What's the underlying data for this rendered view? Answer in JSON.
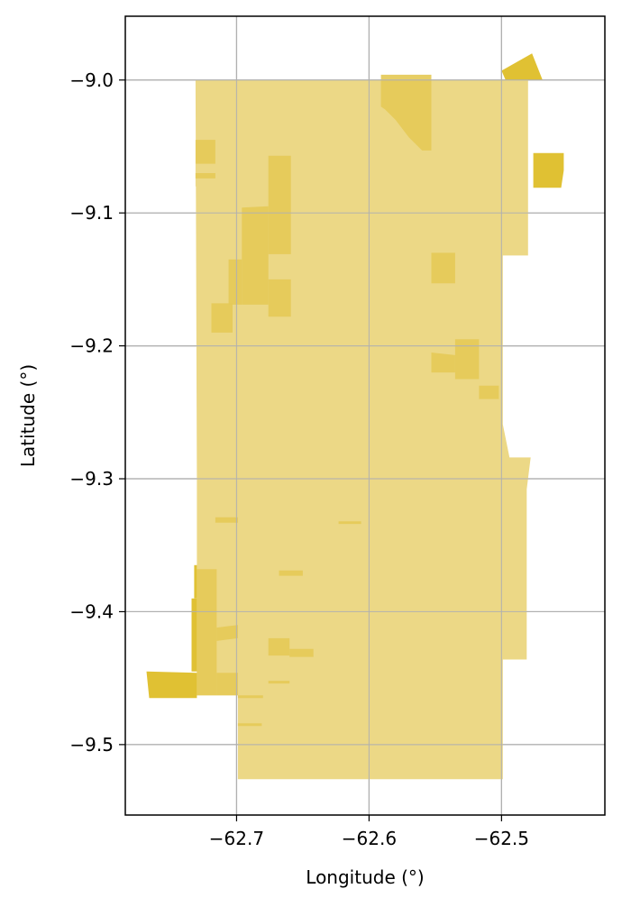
{
  "chart_data": {
    "type": "map",
    "xlabel": "Longitude (°)",
    "ylabel": "Latitude (°)",
    "xlim": [
      -62.784,
      -62.422
    ],
    "ylim": [
      -9.553,
      -8.952
    ],
    "xticks": [
      -62.7,
      -62.6,
      -62.5
    ],
    "yticks": [
      -9.0,
      -9.1,
      -9.2,
      -9.3,
      -9.4,
      -9.5
    ],
    "xtick_labels": [
      "−62.7",
      "−62.6",
      "−62.5"
    ],
    "ytick_labels": [
      "−9.0",
      "−9.1",
      "−9.2",
      "−9.3",
      "−9.4",
      "−9.5"
    ],
    "grid": true,
    "colors": {
      "light": "#ecd886",
      "medium": "#e5ca58",
      "dark": "#ddbc22",
      "grid": "#b0b0b0"
    },
    "polygons": [
      {
        "tone": "light",
        "coords": [
          [
            -62.731,
            -9.0
          ],
          [
            -62.48,
            -9.0
          ],
          [
            -62.48,
            -9.132
          ],
          [
            -62.499,
            -9.132
          ],
          [
            -62.499,
            -9.259
          ],
          [
            -62.494,
            -9.284
          ],
          [
            -62.478,
            -9.284
          ],
          [
            -62.481,
            -9.308
          ],
          [
            -62.481,
            -9.436
          ],
          [
            -62.499,
            -9.436
          ],
          [
            -62.499,
            -9.526
          ],
          [
            -62.699,
            -9.526
          ],
          [
            -62.699,
            -9.463
          ],
          [
            -62.73,
            -9.463
          ],
          [
            -62.73,
            -9.3
          ],
          [
            -62.731,
            -9.0
          ]
        ]
      },
      {
        "tone": "light",
        "coords": [
          [
            -62.731,
            -9.063
          ],
          [
            -62.716,
            -9.063
          ],
          [
            -62.716,
            -9.08
          ],
          [
            -62.731,
            -9.08
          ]
        ]
      },
      {
        "tone": "medium",
        "coords": [
          [
            -62.731,
            -9.045
          ],
          [
            -62.716,
            -9.045
          ],
          [
            -62.716,
            -9.063
          ],
          [
            -62.731,
            -9.063
          ]
        ]
      },
      {
        "tone": "medium",
        "coords": [
          [
            -62.731,
            -9.07
          ],
          [
            -62.716,
            -9.07
          ],
          [
            -62.716,
            -9.074
          ],
          [
            -62.731,
            -9.074
          ]
        ]
      },
      {
        "tone": "medium",
        "coords": [
          [
            -62.676,
            -9.057
          ],
          [
            -62.659,
            -9.057
          ],
          [
            -62.659,
            -9.131
          ],
          [
            -62.676,
            -9.131
          ]
        ]
      },
      {
        "tone": "medium",
        "coords": [
          [
            -62.696,
            -9.096
          ],
          [
            -62.676,
            -9.095
          ],
          [
            -62.676,
            -9.169
          ],
          [
            -62.696,
            -9.169
          ]
        ]
      },
      {
        "tone": "medium",
        "coords": [
          [
            -62.706,
            -9.135
          ],
          [
            -62.696,
            -9.135
          ],
          [
            -62.696,
            -9.169
          ],
          [
            -62.706,
            -9.169
          ]
        ]
      },
      {
        "tone": "medium",
        "coords": [
          [
            -62.676,
            -9.15
          ],
          [
            -62.659,
            -9.15
          ],
          [
            -62.659,
            -9.178
          ],
          [
            -62.676,
            -9.178
          ]
        ]
      },
      {
        "tone": "medium",
        "coords": [
          [
            -62.719,
            -9.168
          ],
          [
            -62.703,
            -9.168
          ],
          [
            -62.703,
            -9.19
          ],
          [
            -62.719,
            -9.19
          ]
        ]
      },
      {
        "tone": "medium",
        "coords": [
          [
            -62.591,
            -8.996
          ],
          [
            -62.553,
            -8.996
          ],
          [
            -62.553,
            -9.053
          ],
          [
            -62.56,
            -9.053
          ],
          [
            -62.57,
            -9.043
          ],
          [
            -62.58,
            -9.03
          ],
          [
            -62.588,
            -9.022
          ],
          [
            -62.591,
            -9.02
          ]
        ]
      },
      {
        "tone": "medium",
        "coords": [
          [
            -62.553,
            -9.13
          ],
          [
            -62.535,
            -9.13
          ],
          [
            -62.535,
            -9.153
          ],
          [
            -62.553,
            -9.153
          ]
        ]
      },
      {
        "tone": "medium",
        "coords": [
          [
            -62.553,
            -9.205
          ],
          [
            -62.535,
            -9.207
          ],
          [
            -62.535,
            -9.22
          ],
          [
            -62.553,
            -9.22
          ]
        ]
      },
      {
        "tone": "medium",
        "coords": [
          [
            -62.535,
            -9.195
          ],
          [
            -62.517,
            -9.195
          ],
          [
            -62.517,
            -9.225
          ],
          [
            -62.535,
            -9.225
          ]
        ]
      },
      {
        "tone": "medium",
        "coords": [
          [
            -62.517,
            -9.23
          ],
          [
            -62.502,
            -9.23
          ],
          [
            -62.502,
            -9.24
          ],
          [
            -62.517,
            -9.24
          ]
        ]
      },
      {
        "tone": "medium",
        "coords": [
          [
            -62.73,
            -9.368
          ],
          [
            -62.715,
            -9.368
          ],
          [
            -62.715,
            -9.463
          ],
          [
            -62.73,
            -9.463
          ]
        ]
      },
      {
        "tone": "medium",
        "coords": [
          [
            -62.715,
            -9.412
          ],
          [
            -62.699,
            -9.41
          ],
          [
            -62.699,
            -9.42
          ],
          [
            -62.715,
            -9.422
          ]
        ]
      },
      {
        "tone": "medium",
        "coords": [
          [
            -62.715,
            -9.446
          ],
          [
            -62.699,
            -9.446
          ],
          [
            -62.699,
            -9.463
          ],
          [
            -62.715,
            -9.463
          ]
        ]
      },
      {
        "tone": "medium",
        "coords": [
          [
            -62.676,
            -9.42
          ],
          [
            -62.66,
            -9.42
          ],
          [
            -62.66,
            -9.433
          ],
          [
            -62.676,
            -9.433
          ]
        ]
      },
      {
        "tone": "medium",
        "coords": [
          [
            -62.66,
            -9.428
          ],
          [
            -62.642,
            -9.428
          ],
          [
            -62.642,
            -9.434
          ],
          [
            -62.66,
            -9.434
          ]
        ]
      },
      {
        "tone": "medium",
        "coords": [
          [
            -62.668,
            -9.369
          ],
          [
            -62.65,
            -9.369
          ],
          [
            -62.65,
            -9.373
          ],
          [
            -62.668,
            -9.373
          ]
        ]
      },
      {
        "tone": "medium",
        "coords": [
          [
            -62.716,
            -9.329
          ],
          [
            -62.699,
            -9.329
          ],
          [
            -62.699,
            -9.333
          ],
          [
            -62.716,
            -9.333
          ]
        ]
      },
      {
        "tone": "medium",
        "coords": [
          [
            -62.623,
            -9.332
          ],
          [
            -62.606,
            -9.332
          ],
          [
            -62.606,
            -9.334
          ],
          [
            -62.623,
            -9.334
          ]
        ]
      },
      {
        "tone": "medium",
        "coords": [
          [
            -62.699,
            -9.463
          ],
          [
            -62.68,
            -9.463
          ],
          [
            -62.68,
            -9.465
          ],
          [
            -62.699,
            -9.465
          ]
        ]
      },
      {
        "tone": "medium",
        "coords": [
          [
            -62.699,
            -9.484
          ],
          [
            -62.681,
            -9.484
          ],
          [
            -62.681,
            -9.486
          ],
          [
            -62.699,
            -9.486
          ]
        ]
      },
      {
        "tone": "medium",
        "coords": [
          [
            -62.676,
            -9.452
          ],
          [
            -62.66,
            -9.452
          ],
          [
            -62.66,
            -9.454
          ],
          [
            -62.676,
            -9.454
          ]
        ]
      },
      {
        "tone": "dark",
        "coords": [
          [
            -62.5,
            -8.993
          ],
          [
            -62.477,
            -8.98
          ],
          [
            -62.469,
            -9.0
          ],
          [
            -62.497,
            -9.0
          ]
        ]
      },
      {
        "tone": "dark",
        "coords": [
          [
            -62.476,
            -9.055
          ],
          [
            -62.453,
            -9.055
          ],
          [
            -62.453,
            -9.068
          ],
          [
            -62.476,
            -9.068
          ]
        ]
      },
      {
        "tone": "dark",
        "coords": [
          [
            -62.476,
            -9.068
          ],
          [
            -62.453,
            -9.068
          ],
          [
            -62.455,
            -9.081
          ],
          [
            -62.476,
            -9.081
          ]
        ]
      },
      {
        "tone": "dark",
        "coords": [
          [
            -62.768,
            -9.445
          ],
          [
            -62.73,
            -9.446
          ],
          [
            -62.73,
            -9.465
          ],
          [
            -62.766,
            -9.465
          ]
        ]
      },
      {
        "tone": "dark",
        "coords": [
          [
            -62.734,
            -9.39
          ],
          [
            -62.73,
            -9.39
          ],
          [
            -62.73,
            -9.445
          ],
          [
            -62.734,
            -9.445
          ]
        ]
      },
      {
        "tone": "dark",
        "coords": [
          [
            -62.732,
            -9.365
          ],
          [
            -62.73,
            -9.365
          ],
          [
            -62.73,
            -9.39
          ],
          [
            -62.732,
            -9.39
          ]
        ]
      }
    ]
  }
}
